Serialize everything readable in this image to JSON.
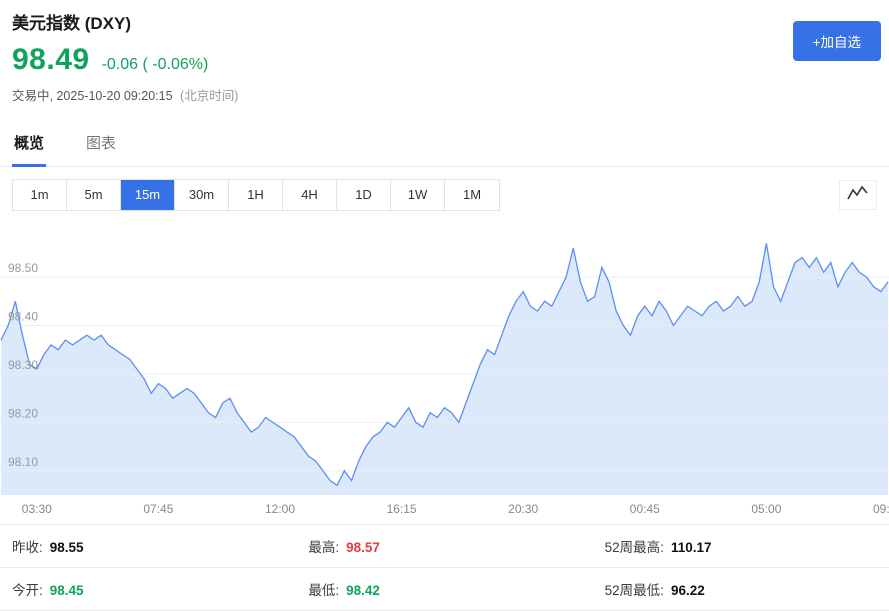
{
  "theme": {
    "accent": "#3671e8",
    "green": "#10a35a",
    "red": "#e23e3e",
    "line_color": "#5b8ff0",
    "fill_color": "#dce9fb",
    "grid_color": "#ededed",
    "axis_text": "#999999"
  },
  "header": {
    "title": "美元指数 (DXY)",
    "price": "98.49",
    "change": "-0.06 ( -0.06%)",
    "status": "交易中,",
    "datetime": "2025-10-20 09:20:15",
    "timezone": "(北京时间)",
    "add_watchlist": "+加自选"
  },
  "tabs": [
    {
      "label": "概览"
    },
    {
      "label": "图表"
    }
  ],
  "toolbar": {
    "intervals": [
      "1m",
      "5m",
      "15m",
      "30m",
      "1H",
      "4H",
      "1D",
      "1W",
      "1M"
    ],
    "active_interval": "15m"
  },
  "chart_data": {
    "type": "area",
    "xlabel": "",
    "ylabel": "",
    "ylim": [
      98.05,
      98.62
    ],
    "yticks": [
      98.1,
      98.2,
      98.3,
      98.4,
      98.5
    ],
    "xticks": [
      {
        "label": "03:30",
        "i": 5
      },
      {
        "label": "07:45",
        "i": 22
      },
      {
        "label": "12:00",
        "i": 39
      },
      {
        "label": "16:15",
        "i": 56
      },
      {
        "label": "20:30",
        "i": 73
      },
      {
        "label": "00:45",
        "i": 90
      },
      {
        "label": "05:00",
        "i": 107
      },
      {
        "label": "09:15",
        "i": 124
      }
    ],
    "values": [
      98.37,
      98.4,
      98.45,
      98.38,
      98.32,
      98.31,
      98.34,
      98.36,
      98.35,
      98.37,
      98.36,
      98.37,
      98.38,
      98.37,
      98.38,
      98.36,
      98.35,
      98.34,
      98.33,
      98.31,
      98.29,
      98.26,
      98.28,
      98.27,
      98.25,
      98.26,
      98.27,
      98.26,
      98.24,
      98.22,
      98.21,
      98.24,
      98.25,
      98.22,
      98.2,
      98.18,
      98.19,
      98.21,
      98.2,
      98.19,
      98.18,
      98.17,
      98.15,
      98.13,
      98.12,
      98.1,
      98.08,
      98.07,
      98.1,
      98.08,
      98.12,
      98.15,
      98.17,
      98.18,
      98.2,
      98.19,
      98.21,
      98.23,
      98.2,
      98.19,
      98.22,
      98.21,
      98.23,
      98.22,
      98.2,
      98.24,
      98.28,
      98.32,
      98.35,
      98.34,
      98.38,
      98.42,
      98.45,
      98.47,
      98.44,
      98.43,
      98.45,
      98.44,
      98.47,
      98.5,
      98.56,
      98.49,
      98.45,
      98.46,
      98.52,
      98.49,
      98.43,
      98.4,
      98.38,
      98.42,
      98.44,
      98.42,
      98.45,
      98.43,
      98.4,
      98.42,
      98.44,
      98.43,
      98.42,
      98.44,
      98.45,
      98.43,
      98.44,
      98.46,
      98.44,
      98.45,
      98.49,
      98.57,
      98.48,
      98.45,
      98.49,
      98.53,
      98.54,
      98.52,
      98.54,
      98.51,
      98.53,
      98.48,
      98.51,
      98.53,
      98.51,
      98.5,
      98.48,
      98.47,
      98.49
    ]
  },
  "stats": {
    "cells": [
      {
        "label": "昨收:",
        "value": "98.55",
        "color": "dark"
      },
      {
        "label": "最高:",
        "value": "98.57",
        "color": "red"
      },
      {
        "label": "52周最高:",
        "value": "110.17",
        "color": "dark"
      },
      {
        "label": "今开:",
        "value": "98.45",
        "color": "green"
      },
      {
        "label": "最低:",
        "value": "98.42",
        "color": "green"
      },
      {
        "label": "52周最低:",
        "value": "96.22",
        "color": "dark"
      }
    ]
  }
}
